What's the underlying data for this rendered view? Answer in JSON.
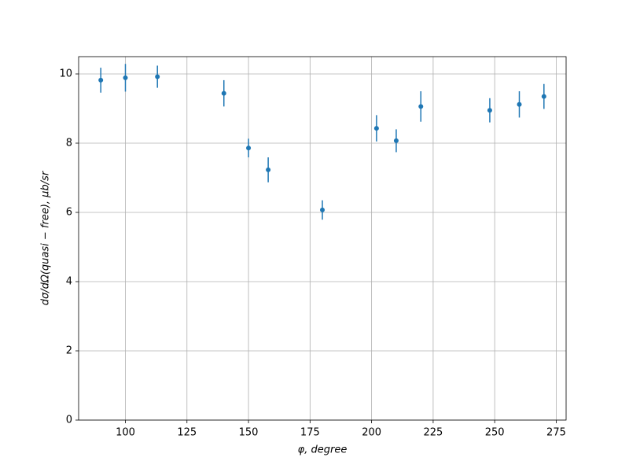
{
  "chart_data": {
    "type": "errorbar",
    "x_label": "φ, degree",
    "y_label": "dσ/dΩ(quasi − free), μb/sr",
    "x": [
      90,
      100,
      113,
      140,
      150,
      158,
      180,
      202,
      210,
      220,
      248,
      260,
      270
    ],
    "series": [
      {
        "color": "#1f77b4",
        "values": [
          9.82,
          9.89,
          9.92,
          9.44,
          7.86,
          7.23,
          6.07,
          8.43,
          8.07,
          9.06,
          8.95,
          9.12,
          9.35
        ],
        "errors": [
          0.36,
          0.4,
          0.32,
          0.38,
          0.27,
          0.36,
          0.28,
          0.38,
          0.33,
          0.44,
          0.35,
          0.38,
          0.36
        ]
      }
    ],
    "xlim": [
      81,
      279
    ],
    "ylim": [
      0,
      10.5
    ],
    "xticks": [
      100,
      125,
      150,
      175,
      200,
      225,
      250,
      275
    ],
    "yticks": [
      0,
      2,
      4,
      6,
      8,
      10
    ],
    "grid": true
  }
}
